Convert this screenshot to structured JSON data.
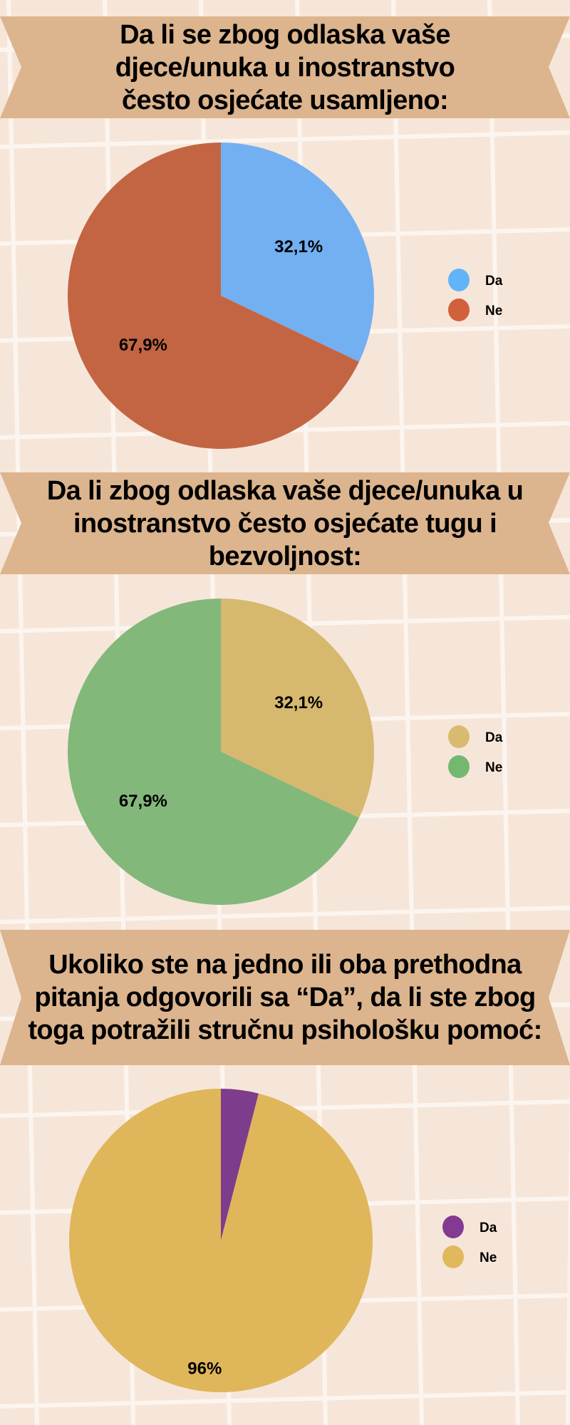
{
  "background_color": "#f6e6d9",
  "banner_color": "#dcb48d",
  "chart_data": [
    {
      "type": "pie",
      "title": "Da li se zbog odlaska vaše djece/unuka u inostranstvo često osjećate usamljeno:",
      "categories": [
        "Da",
        "Ne"
      ],
      "values": [
        32.1,
        67.9
      ],
      "labels": [
        "32,1%",
        "67,9%"
      ],
      "colors": [
        "#73b0f2",
        "#c36543"
      ],
      "legend_colors": [
        "#61b4f8",
        "#d2603a"
      ],
      "legend": "right"
    },
    {
      "type": "pie",
      "title": "Da li zbog odlaska vaše djece/unuka u inostranstvo često osjećate tugu i bezvoljnost:",
      "categories": [
        "Da",
        "Ne"
      ],
      "values": [
        32.1,
        67.9
      ],
      "labels": [
        "32,1%",
        "67,9%"
      ],
      "colors": [
        "#d6b86f",
        "#82b87a"
      ],
      "legend_colors": [
        "#d8bb70",
        "#74b870"
      ],
      "legend": "right"
    },
    {
      "type": "pie",
      "title": "Ukoliko ste na jedno ili oba prethodna pitanja odgovorili sa “Da”, da li ste zbog toga potražili stručnu psihološku pomoć:",
      "categories": [
        "Da",
        "Ne"
      ],
      "values": [
        4,
        96
      ],
      "labels": [
        "",
        "96%"
      ],
      "colors": [
        "#7d3c8c",
        "#e0b65b"
      ],
      "legend_colors": [
        "#833a93",
        "#e2b85d"
      ],
      "legend": "right"
    }
  ]
}
